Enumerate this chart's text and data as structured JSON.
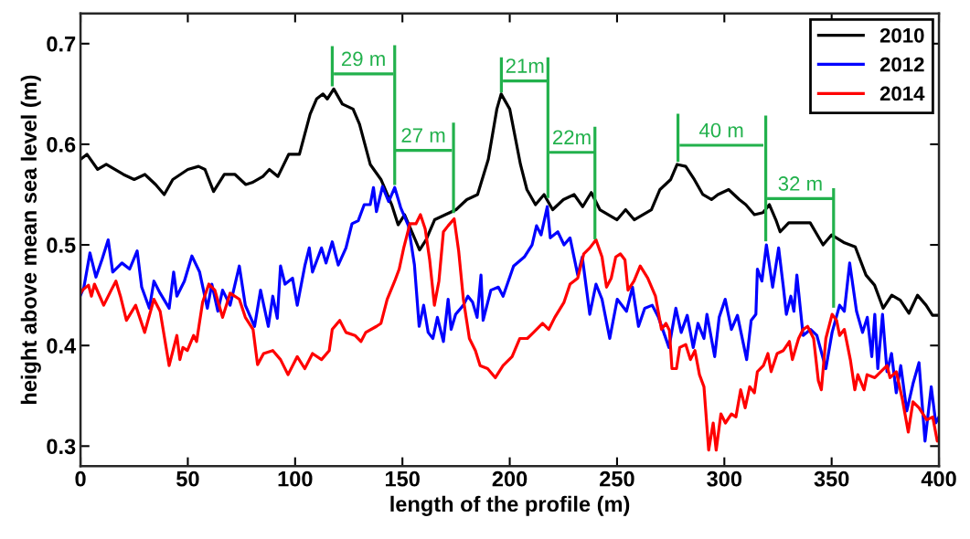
{
  "chart_data": {
    "type": "line",
    "xlabel": "length of the profile (m)",
    "ylabel": "height above mean sea level (m)",
    "xlim": [
      0,
      400
    ],
    "ylim": [
      0.28,
      0.73
    ],
    "xticks": [
      0,
      50,
      100,
      150,
      200,
      250,
      300,
      350,
      400
    ],
    "yticks": [
      0.3,
      0.4,
      0.5,
      0.6,
      0.7
    ],
    "grid": false,
    "legend": "top right",
    "marker": "none",
    "line_style": "solid",
    "series": [
      {
        "name": "2010",
        "color": "#000000",
        "x": [
          0,
          3,
          8,
          12,
          20,
          25,
          30,
          35,
          39,
          43,
          50,
          55,
          58,
          62,
          67,
          72,
          77,
          80,
          85,
          88,
          92,
          97,
          102,
          107,
          110,
          113,
          115,
          118,
          122,
          127,
          130,
          135,
          140,
          145,
          148,
          151,
          155,
          158,
          161,
          165,
          170,
          175,
          180,
          185,
          190,
          194,
          196,
          200,
          205,
          208,
          212,
          216,
          220,
          225,
          230,
          234,
          238,
          242,
          246,
          250,
          254,
          258,
          262,
          266,
          270,
          275,
          278,
          282,
          286,
          290,
          294,
          297,
          302,
          307,
          310,
          314,
          318,
          321,
          324,
          326,
          330,
          340,
          346,
          350,
          356,
          361,
          366,
          370,
          374,
          378,
          382,
          386,
          390,
          394,
          397,
          400
        ],
        "values": [
          0.585,
          0.59,
          0.575,
          0.58,
          0.57,
          0.565,
          0.57,
          0.56,
          0.55,
          0.565,
          0.575,
          0.578,
          0.575,
          0.553,
          0.57,
          0.57,
          0.56,
          0.562,
          0.568,
          0.575,
          0.568,
          0.59,
          0.59,
          0.63,
          0.645,
          0.65,
          0.645,
          0.655,
          0.64,
          0.635,
          0.62,
          0.58,
          0.565,
          0.54,
          0.52,
          0.53,
          0.51,
          0.495,
          0.505,
          0.525,
          0.53,
          0.535,
          0.545,
          0.55,
          0.585,
          0.635,
          0.65,
          0.635,
          0.58,
          0.555,
          0.54,
          0.55,
          0.535,
          0.545,
          0.55,
          0.538,
          0.552,
          0.535,
          0.53,
          0.525,
          0.535,
          0.525,
          0.53,
          0.535,
          0.555,
          0.565,
          0.58,
          0.578,
          0.565,
          0.55,
          0.545,
          0.55,
          0.555,
          0.545,
          0.54,
          0.53,
          0.532,
          0.54,
          0.525,
          0.513,
          0.522,
          0.522,
          0.5,
          0.51,
          0.502,
          0.498,
          0.47,
          0.46,
          0.437,
          0.45,
          0.445,
          0.432,
          0.45,
          0.44,
          0.43,
          0.43
        ]
      },
      {
        "name": "2012",
        "color": "#0000ff",
        "x": [
          0,
          1.6,
          4.4,
          7.2,
          10.1,
          12.9,
          15,
          19.3,
          22.9,
          26.4,
          28.5,
          32.1,
          34.2,
          37.1,
          41.3,
          43.4,
          44.9,
          48.4,
          51.9,
          55.5,
          59.1,
          61.2,
          64,
          66.2,
          69.7,
          74,
          76.8,
          81.1,
          83.9,
          87.5,
          89.6,
          91.7,
          93.2,
          95.3,
          98.8,
          101,
          104.5,
          106.6,
          108.1,
          112.3,
          114.4,
          117.3,
          120.1,
          123.7,
          126.5,
          129.4,
          132.2,
          135,
          136.5,
          137.9,
          140.7,
          143.6,
          146.4,
          149.2,
          152.8,
          155.6,
          157.8,
          159.9,
          162,
          164.2,
          166.3,
          169.1,
          171.3,
          172.7,
          174.8,
          178.4,
          180.5,
          182.7,
          184.8,
          186.6,
          187.6,
          191.2,
          194.7,
          196.9,
          201.8,
          206.8,
          210.4,
          212.5,
          214.6,
          217.5,
          218.9,
          222.4,
          225.3,
          228.1,
          231.7,
          233.8,
          237.3,
          240.2,
          243,
          246.6,
          250.1,
          254.4,
          257.2,
          260,
          262.9,
          266.4,
          269.3,
          274.2,
          277.4,
          279.9,
          282.7,
          285.5,
          287.7,
          290.5,
          291.9,
          295.5,
          297.6,
          300.4,
          303.3,
          306.1,
          310.4,
          312.5,
          314.7,
          315.4,
          317.5,
          319.6,
          322.5,
          325.3,
          327.5,
          328.9,
          331,
          332.4,
          333.8,
          336.7,
          340.2,
          343.1,
          347.3,
          350.2,
          353.7,
          355.9,
          358.4,
          361.6,
          364.4,
          366.6,
          368.7,
          370.1,
          371.5,
          373.7,
          375.8,
          377.9,
          380.1,
          382.2,
          385,
          387.9,
          390.7,
          393.5,
          396.4,
          398.5,
          400
        ],
        "values": [
          0.45,
          0.458,
          0.492,
          0.468,
          0.486,
          0.505,
          0.473,
          0.482,
          0.476,
          0.494,
          0.458,
          0.437,
          0.464,
          0.452,
          0.437,
          0.473,
          0.449,
          0.464,
          0.489,
          0.473,
          0.437,
          0.461,
          0.434,
          0.455,
          0.44,
          0.479,
          0.44,
          0.419,
          0.455,
          0.419,
          0.449,
          0.427,
          0.479,
          0.461,
          0.467,
          0.44,
          0.479,
          0.497,
          0.473,
          0.497,
          0.482,
          0.503,
          0.48,
          0.497,
          0.521,
          0.524,
          0.54,
          0.54,
          0.557,
          0.533,
          0.558,
          0.543,
          0.557,
          0.537,
          0.519,
          0.48,
          0.419,
          0.44,
          0.413,
          0.407,
          0.428,
          0.404,
          0.446,
          0.416,
          0.431,
          0.44,
          0.449,
          0.443,
          0.428,
          0.47,
          0.425,
          0.455,
          0.458,
          0.449,
          0.479,
          0.488,
          0.5,
          0.519,
          0.51,
          0.538,
          0.507,
          0.513,
          0.5,
          0.507,
          0.47,
          0.488,
          0.431,
          0.461,
          0.446,
          0.407,
          0.446,
          0.434,
          0.458,
          0.419,
          0.437,
          0.44,
          0.428,
          0.398,
          0.437,
          0.413,
          0.43,
          0.398,
          0.422,
          0.407,
          0.431,
          0.389,
          0.428,
          0.446,
          0.416,
          0.43,
          0.386,
          0.425,
          0.431,
          0.476,
          0.464,
          0.5,
          0.458,
          0.497,
          0.458,
          0.431,
          0.449,
          0.434,
          0.47,
          0.41,
          0.416,
          0.41,
          0.377,
          0.413,
          0.44,
          0.434,
          0.482,
          0.434,
          0.413,
          0.428,
          0.389,
          0.431,
          0.377,
          0.431,
          0.374,
          0.392,
          0.353,
          0.38,
          0.335,
          0.362,
          0.383,
          0.305,
          0.359,
          0.323,
          0.329
        ]
      },
      {
        "name": "2014",
        "color": "#ff0000",
        "x": [
          0,
          0.9,
          3.7,
          5.1,
          6.5,
          10.8,
          14.3,
          16.5,
          18.6,
          21.4,
          25.7,
          29.9,
          34.2,
          37.1,
          39.2,
          41.3,
          44.9,
          46.3,
          47.7,
          49.8,
          52.7,
          54.1,
          56.9,
          59.8,
          62.6,
          66.2,
          69.7,
          74,
          76.8,
          80.4,
          82.5,
          85.3,
          89.6,
          93.2,
          96.7,
          101,
          104.5,
          108.1,
          112.3,
          115.9,
          117.3,
          120.8,
          123.7,
          127.9,
          130.7,
          132.9,
          137.9,
          140,
          142.9,
          146.4,
          148.5,
          150.6,
          153.5,
          156.3,
          158.4,
          160.6,
          162.7,
          164.9,
          167,
          169.1,
          171.3,
          174.1,
          176.2,
          178.4,
          181.2,
          184,
          186.2,
          189.7,
          193.3,
          196.9,
          201.1,
          204.7,
          208.2,
          211.1,
          215.3,
          218.2,
          221,
          225.3,
          228.1,
          231.7,
          234.5,
          237.3,
          240.2,
          243,
          245.1,
          247.3,
          249.4,
          251.6,
          253.7,
          255.1,
          257.9,
          260.8,
          264.3,
          267.9,
          270.7,
          272.8,
          274.4,
          275.6,
          277.7,
          279.2,
          282,
          284.2,
          286.3,
          288.4,
          290.5,
          292.7,
          294.8,
          296.2,
          298.4,
          300.5,
          303.3,
          305.4,
          307.6,
          309.7,
          311.8,
          314,
          315.4,
          318.2,
          320.3,
          321.8,
          324.6,
          327.5,
          330.3,
          331.7,
          334.6,
          336.7,
          338.8,
          341.6,
          343.8,
          345.2,
          347.3,
          350.2,
          352.3,
          353.7,
          355.9,
          358.7,
          360.8,
          362.2,
          365.1,
          366.5,
          370.1,
          372.9,
          375.8,
          377.2,
          380.1,
          382.9,
          385.7,
          387.9,
          390.7,
          394.3,
          397.1,
          399.2,
          400
        ],
        "values": [
          0.452,
          0.455,
          0.46,
          0.449,
          0.461,
          0.44,
          0.455,
          0.464,
          0.449,
          0.425,
          0.44,
          0.413,
          0.446,
          0.434,
          0.407,
          0.38,
          0.41,
          0.386,
          0.398,
          0.395,
          0.41,
          0.404,
          0.443,
          0.461,
          0.455,
          0.428,
          0.452,
          0.446,
          0.428,
          0.416,
          0.381,
          0.392,
          0.395,
          0.386,
          0.371,
          0.389,
          0.377,
          0.392,
          0.386,
          0.395,
          0.416,
          0.425,
          0.413,
          0.41,
          0.404,
          0.413,
          0.419,
          0.422,
          0.446,
          0.464,
          0.476,
          0.497,
          0.521,
          0.521,
          0.53,
          0.516,
          0.485,
          0.44,
          0.464,
          0.513,
          0.519,
          0.526,
          0.494,
          0.446,
          0.407,
          0.395,
          0.38,
          0.377,
          0.368,
          0.38,
          0.389,
          0.407,
          0.407,
          0.413,
          0.422,
          0.416,
          0.428,
          0.443,
          0.461,
          0.467,
          0.491,
          0.497,
          0.505,
          0.488,
          0.458,
          0.467,
          0.488,
          0.491,
          0.485,
          0.455,
          0.464,
          0.479,
          0.467,
          0.449,
          0.416,
          0.422,
          0.415,
          0.377,
          0.377,
          0.398,
          0.401,
          0.386,
          0.395,
          0.371,
          0.359,
          0.296,
          0.323,
          0.296,
          0.332,
          0.323,
          0.332,
          0.329,
          0.356,
          0.338,
          0.359,
          0.353,
          0.374,
          0.38,
          0.392,
          0.374,
          0.392,
          0.395,
          0.404,
          0.386,
          0.407,
          0.416,
          0.419,
          0.407,
          0.365,
          0.356,
          0.407,
          0.431,
          0.425,
          0.41,
          0.416,
          0.386,
          0.356,
          0.371,
          0.356,
          0.371,
          0.368,
          0.374,
          0.38,
          0.368,
          0.374,
          0.347,
          0.314,
          0.344,
          0.338,
          0.326,
          0.329,
          0.305,
          0.308
        ]
      },
      {
        "color": "#22b14c",
        "x": [
          117.3,
          117.3
        ],
        "values": [
          0.696,
          0.659
        ]
      },
      {
        "color": "#22b14c",
        "x": [
          118.7,
          145.0
        ],
        "values": [
          0.67,
          0.67
        ]
      },
      {
        "color": "#22b14c",
        "x": [
          146.4,
          146.4
        ],
        "values": [
          0.697,
          0.561
        ]
      },
      {
        "color": "#22b14c",
        "x": [
          147.1,
          172.4
        ],
        "values": [
          0.594,
          0.594
        ]
      },
      {
        "color": "#22b14c",
        "x": [
          173.8,
          173.8
        ],
        "values": [
          0.62,
          0.533
        ]
      },
      {
        "color": "#22b14c",
        "x": [
          196.1,
          196.1
        ],
        "values": [
          0.685,
          0.653
        ]
      },
      {
        "color": "#22b14c",
        "x": [
          197.5,
          216.7
        ],
        "values": [
          0.663,
          0.663
        ]
      },
      {
        "color": "#22b14c",
        "x": [
          217.8,
          217.8
        ],
        "values": [
          0.685,
          0.548
        ]
      },
      {
        "color": "#22b14c",
        "x": [
          219.2,
          238.7
        ],
        "values": [
          0.592,
          0.592
        ]
      },
      {
        "color": "#22b14c",
        "x": [
          239.7,
          239.7
        ],
        "values": [
          0.616,
          0.507
        ]
      },
      {
        "color": "#22b14c",
        "x": [
          278.4,
          278.4
        ],
        "values": [
          0.629,
          0.584
        ]
      },
      {
        "color": "#22b14c",
        "x": [
          279.8,
          317.5
        ],
        "values": [
          0.599,
          0.599
        ]
      },
      {
        "color": "#22b14c",
        "x": [
          319.3,
          319.3
        ],
        "values": [
          0.627,
          0.505
        ]
      },
      {
        "color": "#22b14c",
        "x": [
          320.6,
          350.2
        ],
        "values": [
          0.546,
          0.546
        ]
      },
      {
        "color": "#22b14c",
        "x": [
          350.9,
          350.9
        ],
        "values": [
          0.555,
          0.439
        ]
      }
    ],
    "annotations": [
      "29 m",
      "27 m",
      "21m",
      "22m",
      "40 m",
      "32 m"
    ]
  }
}
